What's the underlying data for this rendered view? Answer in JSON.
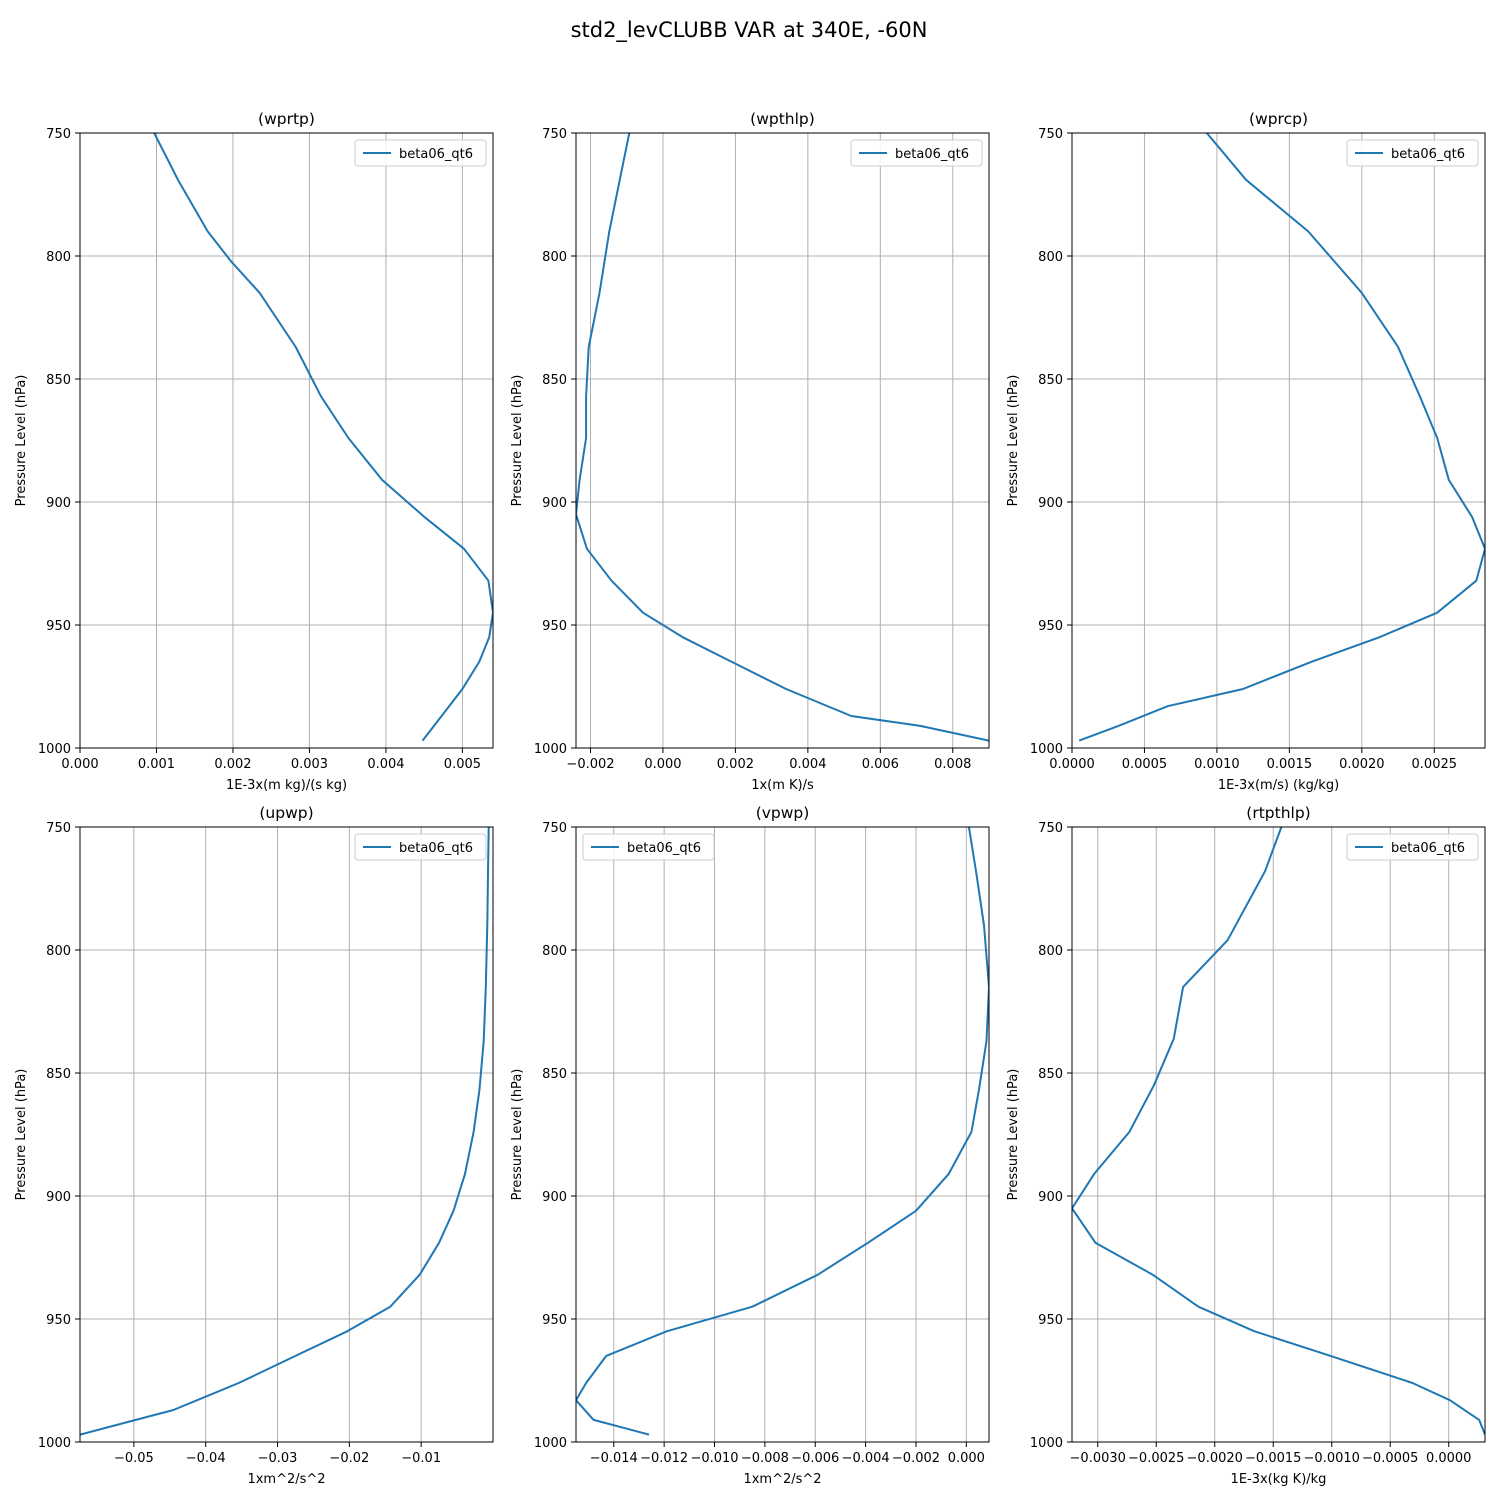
{
  "suptitle": "std2_levCLUBB VAR at 340E, -60N",
  "colors": {
    "series": "#1f77b4",
    "grid": "#b0b0b0",
    "axis": "#000000"
  },
  "chart_data": [
    {
      "type": "line",
      "title": "(wprtp)",
      "xlabel": "1E-3x(m kg)/(s kg)",
      "ylabel": "Pressure Level (hPa)",
      "xlim": [
        0.0,
        0.0054
      ],
      "ylim": [
        1000,
        750
      ],
      "xticks": [
        0.0,
        0.001,
        0.002,
        0.003,
        0.004,
        0.005
      ],
      "xtick_labels": [
        "0.000",
        "0.001",
        "0.002",
        "0.003",
        "0.004",
        "0.005"
      ],
      "yticks": [
        750,
        800,
        850,
        900,
        950,
        1000
      ],
      "ytick_labels": [
        "750",
        "800",
        "850",
        "900",
        "950",
        "1000"
      ],
      "grid": true,
      "legend": "upper right",
      "series": [
        {
          "name": "beta06_qt6",
          "x": [
            0.00097,
            0.00128,
            0.00167,
            0.00197,
            0.00235,
            0.00282,
            0.00315,
            0.00351,
            0.00395,
            0.0045,
            0.00502,
            0.00534,
            0.0054,
            0.00535,
            0.00522,
            0.005,
            0.00448
          ],
          "y": [
            750,
            769,
            790,
            802,
            815,
            837,
            857,
            874,
            891,
            906,
            919,
            932,
            945,
            955,
            965,
            976,
            997
          ]
        }
      ]
    },
    {
      "type": "line",
      "title": "(wpthlp)",
      "xlabel": "1x(m K)/s",
      "ylabel": "Pressure Level (hPa)",
      "xlim": [
        -0.0024,
        0.009
      ],
      "ylim": [
        1000,
        750
      ],
      "xticks": [
        -0.002,
        0.0,
        0.002,
        0.004,
        0.006,
        0.008
      ],
      "xtick_labels": [
        "−0.002",
        "0.000",
        "0.002",
        "0.004",
        "0.006",
        "0.008"
      ],
      "yticks": [
        750,
        800,
        850,
        900,
        950,
        1000
      ],
      "ytick_labels": [
        "750",
        "800",
        "850",
        "900",
        "950",
        "1000"
      ],
      "grid": true,
      "legend": "upper right",
      "series": [
        {
          "name": "beta06_qt6",
          "x": [
            -0.00093,
            -0.00119,
            -0.00148,
            -0.00175,
            -0.00205,
            -0.00212,
            -0.00212,
            -0.0023,
            -0.0024,
            -0.0021,
            -0.00142,
            -0.00055,
            0.00055,
            0.0019,
            0.0034,
            0.0052,
            0.0071,
            0.009
          ],
          "y": [
            750,
            769,
            790,
            815,
            837,
            857,
            874,
            891,
            905,
            919,
            932,
            945,
            955,
            965,
            976,
            987,
            991,
            997
          ]
        }
      ]
    },
    {
      "type": "line",
      "title": "(wprcp)",
      "xlabel": "1E-3x(m/s) (kg/kg)",
      "ylabel": "Pressure Level (hPa)",
      "xlim": [
        0.0,
        0.00285
      ],
      "ylim": [
        1000,
        750
      ],
      "xticks": [
        0.0,
        0.0005,
        0.001,
        0.0015,
        0.002,
        0.0025
      ],
      "xtick_labels": [
        "0.0000",
        "0.0005",
        "0.0010",
        "0.0015",
        "0.0020",
        "0.0025"
      ],
      "yticks": [
        750,
        800,
        850,
        900,
        950,
        1000
      ],
      "ytick_labels": [
        "750",
        "800",
        "850",
        "900",
        "950",
        "1000"
      ],
      "grid": true,
      "legend": "upper right",
      "series": [
        {
          "name": "beta06_qt6",
          "x": [
            0.00093,
            0.0012,
            0.00163,
            0.002,
            0.00225,
            0.0024,
            0.00252,
            0.0026,
            0.00276,
            0.00285,
            0.00279,
            0.00252,
            0.00212,
            0.00165,
            0.00118,
            0.00066,
            0.00032,
            5e-05
          ],
          "y": [
            750,
            769,
            790,
            815,
            837,
            857,
            874,
            891,
            906,
            919,
            932,
            945,
            955,
            965,
            976,
            983,
            991,
            997
          ]
        }
      ]
    },
    {
      "type": "line",
      "title": "(upwp)",
      "xlabel": "1xm^2/s^2",
      "ylabel": "Pressure Level (hPa)",
      "xlim": [
        -0.0575,
        0.0
      ],
      "ylim": [
        1000,
        750
      ],
      "xticks": [
        -0.05,
        -0.04,
        -0.03,
        -0.02,
        -0.01
      ],
      "xtick_labels": [
        "−0.05",
        "−0.04",
        "−0.03",
        "−0.02",
        "−0.01"
      ],
      "yticks": [
        750,
        800,
        850,
        900,
        950,
        1000
      ],
      "ytick_labels": [
        "750",
        "800",
        "850",
        "900",
        "950",
        "1000"
      ],
      "grid": true,
      "legend": "upper right",
      "series": [
        {
          "name": "beta06_qt6",
          "x": [
            -0.0006,
            -0.0007,
            -0.0008,
            -0.001,
            -0.0013,
            -0.0019,
            -0.0027,
            -0.0039,
            -0.0055,
            -0.0075,
            -0.0102,
            -0.0143,
            -0.0203,
            -0.0275,
            -0.0354,
            -0.0445,
            -0.0575
          ],
          "y": [
            750,
            769,
            790,
            815,
            837,
            857,
            874,
            891,
            906,
            919,
            932,
            945,
            955,
            965,
            976,
            987,
            997
          ]
        }
      ]
    },
    {
      "type": "line",
      "title": "(vpwp)",
      "xlabel": "1xm^2/s^2",
      "ylabel": "Pressure Level (hPa)",
      "xlim": [
        -0.0155,
        0.0009
      ],
      "ylim": [
        1000,
        750
      ],
      "xticks": [
        -0.014,
        -0.012,
        -0.01,
        -0.008,
        -0.006,
        -0.004,
        -0.002,
        0.0
      ],
      "xtick_labels": [
        "−0.014",
        "−0.012",
        "−0.010",
        "−0.008",
        "−0.006",
        "−0.004",
        "−0.002",
        "0.000"
      ],
      "yticks": [
        750,
        800,
        850,
        900,
        950,
        1000
      ],
      "ytick_labels": [
        "750",
        "800",
        "850",
        "900",
        "950",
        "1000"
      ],
      "grid": true,
      "legend": "upper left",
      "series": [
        {
          "name": "beta06_qt6",
          "x": [
            0.0001,
            0.0004,
            0.0007,
            0.0009,
            0.0008,
            0.0005,
            0.0002,
            -0.0007,
            -0.002,
            -0.0039,
            -0.0059,
            -0.0085,
            -0.0119,
            -0.0143,
            -0.0151,
            -0.0155,
            -0.0148,
            -0.0126
          ],
          "y": [
            750,
            769,
            790,
            815,
            837,
            857,
            874,
            891,
            906,
            919,
            932,
            945,
            955,
            965,
            976,
            983,
            991,
            997
          ]
        }
      ]
    },
    {
      "type": "line",
      "title": "(rtpthlp)",
      "xlabel": "1E-3x(kg K)/kg",
      "ylabel": "Pressure Level (hPa)",
      "xlim": [
        -0.00322,
        0.00031
      ],
      "ylim": [
        1000,
        750
      ],
      "xticks": [
        -0.003,
        -0.0025,
        -0.002,
        -0.0015,
        -0.001,
        -0.0005,
        0.0
      ],
      "xtick_labels": [
        "−0.0030",
        "−0.0025",
        "−0.0020",
        "−0.0015",
        "−0.0010",
        "−0.0005",
        "0.0000"
      ],
      "yticks": [
        750,
        800,
        850,
        900,
        950,
        1000
      ],
      "ytick_labels": [
        "750",
        "800",
        "850",
        "900",
        "950",
        "1000"
      ],
      "grid": true,
      "legend": "upper right",
      "series": [
        {
          "name": "beta06_qt6",
          "x": [
            -0.00143,
            -0.00157,
            -0.00189,
            -0.00227,
            -0.00235,
            -0.00252,
            -0.00273,
            -0.00303,
            -0.00322,
            -0.00302,
            -0.00253,
            -0.00214,
            -0.00166,
            -0.00101,
            -0.00031,
            1e-05,
            0.00026,
            0.00031
          ],
          "y": [
            750,
            768,
            796,
            815,
            836,
            855,
            874,
            891,
            905,
            919,
            932,
            945,
            955,
            965,
            976,
            983,
            991,
            997
          ]
        }
      ]
    }
  ]
}
